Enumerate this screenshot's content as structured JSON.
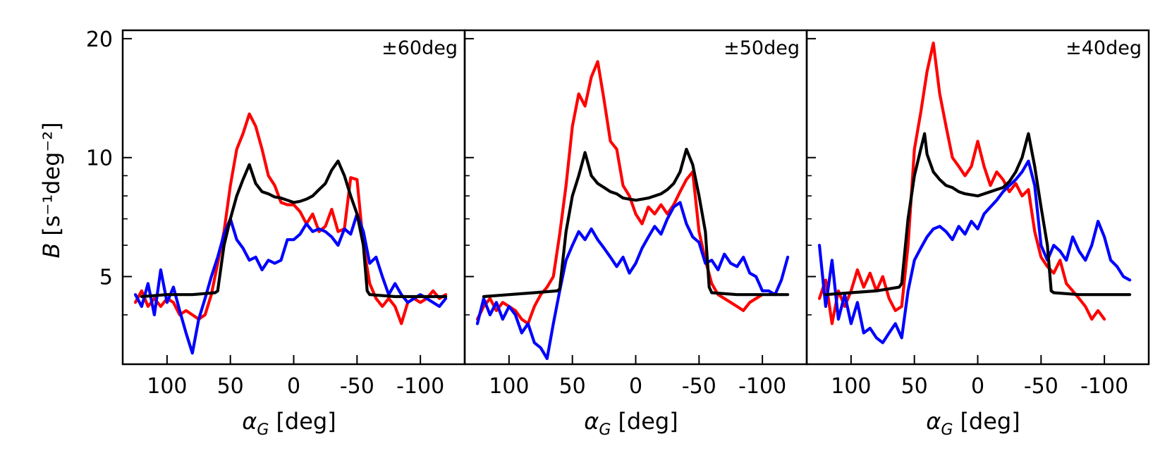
{
  "chart_data": {
    "type": "line",
    "ylabel": "B [s⁻¹deg⁻²]",
    "ylabel_var": "B",
    "ylabel_units": "[s⁻¹deg⁻²]",
    "yscale": "log",
    "ylim": [
      3.0,
      21.0
    ],
    "y_major_ticks": [
      5,
      10,
      20
    ],
    "y_major_tick_labels": [
      "5",
      "10",
      "20"
    ],
    "y_minor_ticks": [
      3,
      4,
      6,
      7,
      8,
      9
    ],
    "xlim": [
      135,
      -135
    ],
    "x_ticks": [
      100,
      50,
      0,
      -50,
      -100
    ],
    "x_tick_labels": [
      "100",
      "50",
      "0",
      "-50",
      "-100"
    ],
    "xlabel": "α_G [deg]",
    "xlabel_var": "α",
    "xlabel_sub": "G",
    "xlabel_units": "[deg]",
    "series_colors": {
      "red": "#ff0000",
      "blue": "#0000ff",
      "black": "#000000"
    },
    "panels": [
      {
        "annotation": "±60deg",
        "series": [
          {
            "name": "red",
            "color": "#ff0000",
            "x": [
              125,
              120,
              115,
              110,
              105,
              100,
              95,
              90,
              85,
              80,
              75,
              70,
              65,
              60,
              55,
              50,
              45,
              40,
              35,
              30,
              25,
              20,
              15,
              10,
              5,
              0,
              -5,
              -10,
              -15,
              -20,
              -25,
              -30,
              -35,
              -40,
              -45,
              -50,
              -55,
              -60,
              -65,
              -70,
              -75,
              -80,
              -85,
              -90,
              -95,
              -100,
              -105,
              -110,
              -115,
              -120
            ],
            "y": [
              4.3,
              4.6,
              4.2,
              4.4,
              4.2,
              4.4,
              4.3,
              4.0,
              4.1,
              4.0,
              3.9,
              4.0,
              4.5,
              5.4,
              6.5,
              8.5,
              10.5,
              11.5,
              12.9,
              12.0,
              10.5,
              9.0,
              8.5,
              7.7,
              7.6,
              7.6,
              7.3,
              6.8,
              7.2,
              6.5,
              6.7,
              7.4,
              6.5,
              6.6,
              8.9,
              8.8,
              6.0,
              4.8,
              4.4,
              4.2,
              4.4,
              4.2,
              3.8,
              4.3,
              4.4,
              4.3,
              4.4,
              4.6,
              4.4,
              4.5
            ]
          },
          {
            "name": "blue",
            "color": "#0000ff",
            "x": [
              125,
              120,
              115,
              110,
              105,
              100,
              95,
              90,
              85,
              80,
              75,
              70,
              65,
              60,
              55,
              50,
              45,
              40,
              35,
              30,
              25,
              20,
              15,
              10,
              5,
              0,
              -5,
              -10,
              -15,
              -20,
              -25,
              -30,
              -35,
              -40,
              -45,
              -50,
              -55,
              -60,
              -65,
              -70,
              -75,
              -80,
              -85,
              -90,
              -95,
              -100,
              -105,
              -110,
              -115,
              -120
            ],
            "y": [
              4.5,
              4.2,
              4.8,
              4.0,
              5.2,
              4.3,
              4.7,
              4.1,
              3.6,
              3.2,
              3.9,
              4.4,
              5.0,
              5.6,
              6.4,
              7.0,
              6.2,
              5.9,
              5.5,
              5.6,
              5.2,
              5.5,
              5.4,
              5.5,
              6.2,
              6.2,
              6.4,
              6.8,
              6.5,
              6.6,
              6.5,
              6.3,
              6.0,
              6.6,
              6.4,
              7.2,
              6.5,
              5.4,
              5.6,
              5.0,
              4.5,
              4.8,
              4.5,
              4.3,
              4.4,
              4.5,
              4.4,
              4.3,
              4.2,
              4.4
            ]
          },
          {
            "name": "black",
            "color": "#000000",
            "x": [
              120,
              100,
              80,
              62,
              60,
              55,
              50,
              45,
              40,
              35,
              30,
              25,
              20,
              15,
              10,
              5,
              0,
              -5,
              -10,
              -15,
              -20,
              -25,
              -30,
              -35,
              -40,
              -45,
              -50,
              -55,
              -58,
              -60,
              -80,
              -100,
              -120
            ],
            "y": [
              4.45,
              4.5,
              4.5,
              4.55,
              4.6,
              6.0,
              7.0,
              8.0,
              8.8,
              9.6,
              8.6,
              8.2,
              8.1,
              7.95,
              7.9,
              7.8,
              7.7,
              7.75,
              7.85,
              8.0,
              8.3,
              8.6,
              9.3,
              9.8,
              9.0,
              8.0,
              7.2,
              6.0,
              4.6,
              4.5,
              4.45,
              4.45,
              4.45
            ]
          }
        ]
      },
      {
        "annotation": "±50deg",
        "series": [
          {
            "name": "red",
            "color": "#ff0000",
            "x": [
              125,
              120,
              115,
              110,
              105,
              100,
              95,
              90,
              85,
              80,
              75,
              70,
              65,
              60,
              55,
              50,
              45,
              40,
              35,
              30,
              25,
              20,
              15,
              10,
              5,
              0,
              -5,
              -10,
              -15,
              -20,
              -25,
              -30,
              -35,
              -40,
              -45,
              -50,
              -55,
              -60,
              -65,
              -70,
              -75,
              -80,
              -85,
              -90,
              -95,
              -100
            ],
            "y": [
              3.9,
              4.2,
              4.4,
              4.1,
              4.3,
              4.2,
              4.1,
              3.9,
              3.8,
              4.2,
              4.5,
              4.7,
              5.0,
              6.4,
              8.5,
              12.0,
              14.5,
              13.5,
              16.0,
              17.5,
              14.0,
              11.0,
              10.5,
              8.5,
              8.0,
              7.2,
              6.8,
              7.5,
              7.2,
              7.6,
              7.2,
              7.6,
              8.2,
              8.8,
              9.2,
              6.5,
              5.5,
              4.8,
              4.5,
              4.4,
              4.3,
              4.2,
              4.1,
              4.3,
              4.4,
              4.5
            ]
          },
          {
            "name": "blue",
            "color": "#0000ff",
            "x": [
              125,
              120,
              115,
              110,
              105,
              100,
              95,
              90,
              85,
              80,
              75,
              70,
              65,
              60,
              55,
              50,
              45,
              40,
              35,
              30,
              25,
              20,
              15,
              10,
              5,
              0,
              -5,
              -10,
              -15,
              -20,
              -25,
              -30,
              -35,
              -40,
              -45,
              -50,
              -55,
              -60,
              -65,
              -70,
              -75,
              -80,
              -85,
              -90,
              -95,
              -100,
              -105,
              -110,
              -115,
              -120
            ],
            "y": [
              3.8,
              4.4,
              4.0,
              4.3,
              3.9,
              4.2,
              4.0,
              3.6,
              3.8,
              3.4,
              3.3,
              3.1,
              3.8,
              4.6,
              5.5,
              6.0,
              6.5,
              6.2,
              6.6,
              6.2,
              5.9,
              5.6,
              5.3,
              5.6,
              5.1,
              5.4,
              5.9,
              6.3,
              6.7,
              6.4,
              7.0,
              7.5,
              7.7,
              6.8,
              6.3,
              6.1,
              5.4,
              5.5,
              5.2,
              5.7,
              5.4,
              5.3,
              5.6,
              5.1,
              5.0,
              4.6,
              4.6,
              4.5,
              4.9,
              5.6
            ]
          },
          {
            "name": "black",
            "color": "#000000",
            "x": [
              120,
              100,
              80,
              62,
              60,
              55,
              50,
              45,
              40,
              35,
              30,
              25,
              20,
              15,
              10,
              5,
              0,
              -5,
              -10,
              -15,
              -20,
              -25,
              -30,
              -35,
              -40,
              -45,
              -50,
              -55,
              -58,
              -60,
              -80,
              -100,
              -120
            ],
            "y": [
              4.45,
              4.5,
              4.55,
              4.6,
              4.65,
              6.5,
              8.0,
              9.0,
              10.3,
              9.0,
              8.6,
              8.4,
              8.2,
              8.1,
              7.9,
              7.85,
              7.8,
              7.85,
              7.9,
              8.0,
              8.1,
              8.3,
              8.6,
              9.2,
              10.5,
              9.6,
              8.0,
              6.5,
              4.7,
              4.55,
              4.5,
              4.5,
              4.5
            ]
          }
        ]
      },
      {
        "annotation": "±40deg",
        "series": [
          {
            "name": "red",
            "color": "#ff0000",
            "x": [
              125,
              120,
              115,
              110,
              105,
              100,
              95,
              90,
              85,
              80,
              75,
              70,
              65,
              60,
              55,
              50,
              45,
              40,
              35,
              30,
              25,
              20,
              15,
              10,
              5,
              0,
              -5,
              -10,
              -15,
              -20,
              -25,
              -30,
              -35,
              -40,
              -45,
              -50,
              -55,
              -60,
              -65,
              -70,
              -75,
              -80,
              -85,
              -90,
              -95,
              -100
            ],
            "y": [
              4.4,
              4.9,
              3.8,
              4.6,
              4.2,
              4.6,
              5.2,
              4.7,
              5.1,
              4.6,
              5.0,
              4.4,
              4.1,
              4.2,
              6.0,
              10.5,
              13.0,
              16.5,
              19.5,
              14.5,
              12.0,
              10.0,
              9.5,
              9.0,
              9.5,
              11.0,
              9.5,
              8.5,
              9.2,
              8.8,
              8.2,
              8.6,
              8.0,
              8.3,
              6.5,
              5.6,
              5.3,
              5.1,
              5.5,
              4.8,
              4.6,
              4.4,
              4.2,
              3.9,
              4.1,
              3.9
            ]
          },
          {
            "name": "blue",
            "color": "#0000ff",
            "x": [
              125,
              120,
              115,
              110,
              105,
              100,
              95,
              90,
              85,
              80,
              75,
              70,
              65,
              60,
              55,
              50,
              45,
              40,
              35,
              30,
              25,
              20,
              15,
              10,
              5,
              0,
              -5,
              -10,
              -15,
              -20,
              -25,
              -30,
              -35,
              -40,
              -45,
              -50,
              -55,
              -60,
              -65,
              -70,
              -75,
              -80,
              -85,
              -90,
              -95,
              -100,
              -105,
              -110,
              -115,
              -120
            ],
            "y": [
              6.0,
              4.2,
              5.5,
              3.9,
              4.5,
              3.8,
              4.3,
              3.6,
              3.7,
              3.5,
              3.4,
              3.6,
              3.8,
              3.5,
              4.6,
              5.5,
              5.9,
              6.3,
              6.6,
              6.7,
              6.5,
              6.2,
              6.7,
              6.4,
              6.9,
              6.6,
              7.2,
              7.5,
              7.8,
              8.2,
              8.5,
              8.8,
              9.2,
              9.8,
              8.5,
              6.0,
              5.5,
              6.0,
              5.8,
              5.5,
              6.3,
              5.8,
              5.5,
              6.0,
              6.9,
              6.3,
              5.5,
              5.3,
              5.0,
              4.9
            ]
          },
          {
            "name": "black",
            "color": "#000000",
            "x": [
              120,
              100,
              80,
              62,
              60,
              55,
              50,
              45,
              42,
              40,
              35,
              30,
              25,
              20,
              15,
              10,
              5,
              0,
              -5,
              -10,
              -15,
              -20,
              -25,
              -30,
              -35,
              -40,
              -45,
              -50,
              -55,
              -58,
              -60,
              -80,
              -100,
              -120
            ],
            "y": [
              4.5,
              4.55,
              4.6,
              4.7,
              4.8,
              7.0,
              9.0,
              10.5,
              11.5,
              10.2,
              9.2,
              8.8,
              8.5,
              8.4,
              8.2,
              8.1,
              8.05,
              8.0,
              8.1,
              8.2,
              8.3,
              8.4,
              8.7,
              9.2,
              10.0,
              11.5,
              9.5,
              7.5,
              6.0,
              4.6,
              4.55,
              4.5,
              4.5,
              4.5
            ]
          }
        ]
      }
    ]
  }
}
